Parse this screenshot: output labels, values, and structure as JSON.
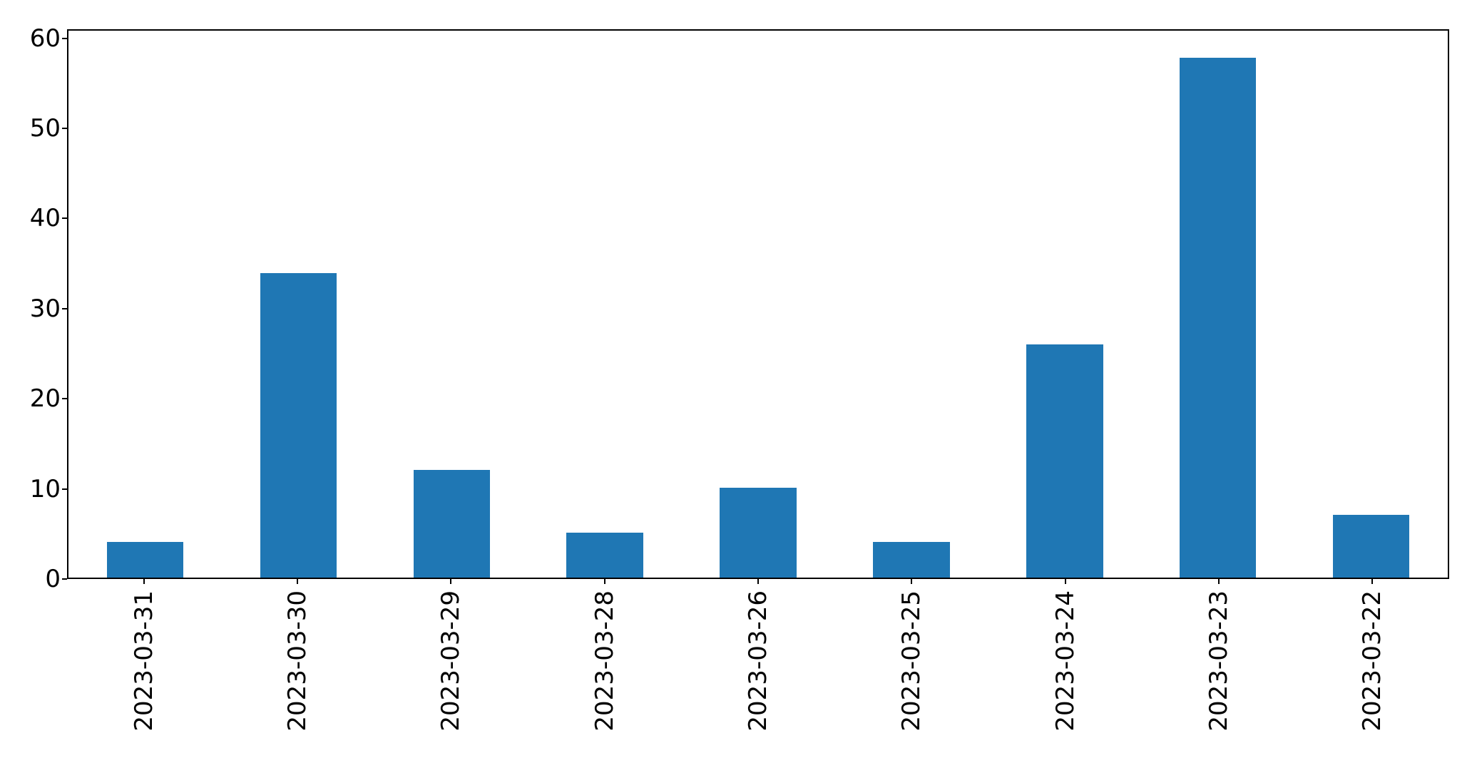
{
  "chart_data": {
    "type": "bar",
    "title": "",
    "xlabel": "",
    "ylabel": "",
    "categories": [
      "2023-03-31",
      "2023-03-30",
      "2023-03-29",
      "2023-03-28",
      "2023-03-26",
      "2023-03-25",
      "2023-03-24",
      "2023-03-23",
      "2023-03-22"
    ],
    "values": [
      4,
      34,
      12,
      5,
      10,
      4,
      26,
      58,
      7
    ],
    "yticks": [
      0,
      10,
      20,
      30,
      40,
      50,
      60
    ],
    "ylim": [
      0,
      61
    ],
    "x_tick_rotation_degrees": 90,
    "grid": false,
    "legend_position": "none",
    "bar_color": "#1f77b4",
    "spine_color": "#000000",
    "background_color": "#ffffff"
  }
}
